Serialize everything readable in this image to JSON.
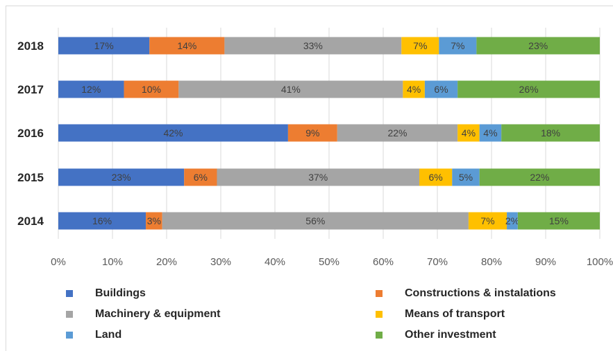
{
  "chart_data": {
    "type": "bar",
    "orientation": "horizontal",
    "stacked": "percent",
    "categories": [
      "2018",
      "2017",
      "2016",
      "2015",
      "2014"
    ],
    "series": [
      {
        "name": "Buildings",
        "color": "#4472c4",
        "values": [
          17,
          12,
          42,
          23,
          16
        ],
        "labels": [
          "17%",
          "12%",
          "42%",
          "23%",
          "16%"
        ]
      },
      {
        "name": "Constructions & instalations",
        "color": "#ed7d31",
        "values": [
          14,
          10,
          9,
          6,
          3
        ],
        "labels": [
          "14%",
          "10%",
          "9%",
          "6%",
          "3%"
        ]
      },
      {
        "name": "Machinery & equipment",
        "color": "#a5a5a5",
        "values": [
          33,
          41,
          22,
          37,
          56
        ],
        "labels": [
          "33%",
          "41%",
          "22%",
          "37%",
          "56%"
        ]
      },
      {
        "name": "Means of transport",
        "color": "#ffc000",
        "values": [
          7,
          4,
          4,
          6,
          7
        ],
        "labels": [
          "7%",
          "4%",
          "4%",
          "6%",
          "7%"
        ]
      },
      {
        "name": "Land",
        "color": "#5b9bd5",
        "values": [
          7,
          6,
          4,
          5,
          2
        ],
        "labels": [
          "7%",
          "6%",
          "4%",
          "5%",
          "2%"
        ]
      },
      {
        "name": "Other investment",
        "color": "#70ad47",
        "values": [
          23,
          26,
          18,
          22,
          15
        ],
        "labels": [
          "23%",
          "26%",
          "18%",
          "22%",
          "15%"
        ]
      }
    ],
    "xticks": [
      "0%",
      "10%",
      "20%",
      "30%",
      "40%",
      "50%",
      "60%",
      "70%",
      "80%",
      "90%",
      "100%"
    ],
    "xlim": [
      0,
      100
    ],
    "grid": true,
    "legend_position": "bottom",
    "title": "",
    "xlabel": "",
    "ylabel": ""
  }
}
